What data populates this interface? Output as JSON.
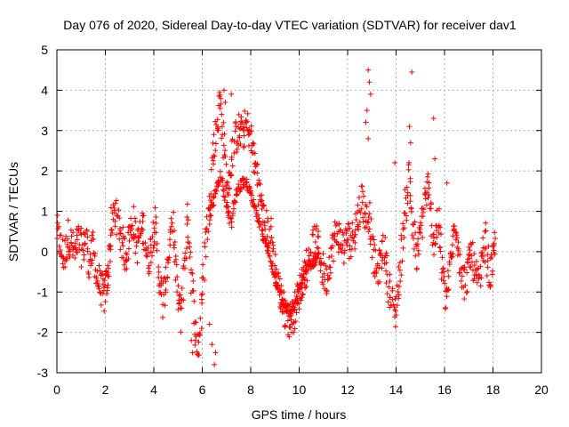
{
  "chart_data": {
    "type": "scatter",
    "title": "Day 076 of 2020, Sidereal Day-to-day VTEC variation (SDTVAR) for receiver dav1",
    "xlabel": "GPS time / hours",
    "ylabel": "SDTVAR / TECUs",
    "xlim": [
      0,
      20
    ],
    "ylim": [
      -3,
      5
    ],
    "xticks": [
      0,
      2,
      4,
      6,
      8,
      10,
      12,
      14,
      16,
      18,
      20
    ],
    "yticks": [
      -3,
      -2,
      -1,
      0,
      1,
      2,
      3,
      4,
      5
    ],
    "grid": true,
    "marker": "+",
    "series": [
      {
        "name": "SDTVAR (dav1)",
        "color": "#ff0000",
        "x": [
          0.0,
          0.15,
          0.3,
          0.45,
          0.6,
          0.75,
          0.9,
          1.05,
          1.2,
          1.35,
          1.5,
          1.65,
          1.8,
          1.95,
          2.05,
          2.15,
          2.25,
          2.4,
          2.55,
          2.7,
          2.85,
          3.0,
          3.15,
          3.3,
          3.45,
          3.6,
          3.75,
          3.9,
          4.05,
          4.2,
          4.35,
          4.5,
          4.65,
          4.8,
          4.95,
          5.1,
          5.25,
          5.4,
          5.55,
          5.7,
          5.85,
          6.0,
          6.15,
          6.3,
          6.45,
          6.6,
          6.75,
          6.9,
          7.05,
          7.2,
          7.35,
          7.5,
          7.65,
          7.8,
          7.95,
          8.1,
          8.25,
          8.4,
          8.55,
          8.7,
          8.85,
          9.0,
          9.15,
          9.3,
          9.45,
          9.6,
          9.75,
          9.9,
          10.05,
          10.2,
          10.35,
          10.5,
          10.65,
          10.8,
          10.95,
          11.1,
          11.25,
          11.4,
          11.55,
          11.7,
          11.85,
          12.0,
          12.15,
          12.3,
          12.45,
          12.6,
          12.75,
          12.9,
          13.05,
          13.2,
          13.35,
          13.5,
          13.65,
          13.8,
          13.95,
          14.1,
          14.25,
          14.4,
          14.55,
          14.7,
          14.85,
          15.0,
          15.15,
          15.3,
          15.45,
          15.6,
          15.75,
          15.9,
          16.05,
          16.2,
          16.35,
          16.5,
          16.65,
          16.8,
          16.95,
          17.1,
          17.25,
          17.4,
          17.55,
          17.7,
          17.85,
          18.0,
          18.1
        ],
        "y": [
          0.5,
          0.1,
          -0.2,
          0.4,
          0.2,
          -0.1,
          0.3,
          0.0,
          0.4,
          -0.3,
          0.1,
          -0.6,
          -0.9,
          -1.1,
          -0.8,
          -0.3,
          0.6,
          1.0,
          0.7,
          0.2,
          -0.1,
          0.4,
          0.8,
          0.1,
          0.5,
          0.6,
          -0.3,
          0.2,
          0.8,
          -0.5,
          -1.3,
          -0.7,
          0.2,
          0.6,
          -0.9,
          -1.6,
          -0.4,
          0.9,
          -0.6,
          -1.9,
          -2.4,
          -1.2,
          0.4,
          1.1,
          2.4,
          3.1,
          3.8,
          2.5,
          1.4,
          2.2,
          2.8,
          3.0,
          2.9,
          3.1,
          3.0,
          2.4,
          2.0,
          1.3,
          0.8,
          0.5,
          0.4,
          -0.4,
          -0.9,
          -1.3,
          -1.5,
          -1.7,
          -1.6,
          -1.2,
          -0.9,
          -0.6,
          -0.3,
          0.0,
          0.3,
          0.1,
          -0.4,
          -0.7,
          -0.2,
          0.2,
          0.5,
          0.3,
          0.1,
          0.4,
          0.2,
          0.6,
          0.9,
          1.4,
          0.8,
          1.0,
          -0.1,
          -0.5,
          -0.3,
          0.2,
          -0.6,
          -1.2,
          -1.5,
          -0.9,
          0.2,
          1.1,
          2.0,
          0.6,
          -0.2,
          0.4,
          1.2,
          1.6,
          0.8,
          0.2,
          0.9,
          -0.4,
          -1.2,
          -0.6,
          0.3,
          0.7,
          -0.3,
          -0.8,
          -0.5,
          0.0,
          -0.5,
          -0.9,
          -0.2,
          0.3,
          -0.6,
          -0.3,
          0.2
        ],
        "x2": [
          6.3,
          6.45,
          6.6,
          6.75,
          6.9,
          7.05,
          7.2,
          7.35,
          7.5,
          7.65,
          7.8,
          7.95,
          8.1,
          8.25,
          8.4,
          8.55,
          8.7,
          8.85,
          9.0,
          9.15,
          9.3,
          9.45,
          9.6,
          9.75,
          9.9,
          10.05,
          10.2,
          10.35,
          10.5,
          10.65,
          10.8
        ],
        "y2": [
          0.9,
          1.2,
          1.6,
          1.9,
          1.5,
          1.0,
          0.7,
          1.3,
          1.6,
          1.7,
          1.7,
          1.5,
          1.2,
          0.9,
          0.6,
          0.3,
          0.0,
          -0.3,
          -0.6,
          -0.9,
          -1.2,
          -1.4,
          -1.5,
          -1.4,
          -1.2,
          -0.9,
          -0.6,
          -0.4,
          -0.3,
          -0.2,
          -0.1
        ],
        "outliers": [
          [
            12.85,
            4.5
          ],
          [
            12.9,
            4.2
          ],
          [
            12.95,
            3.9
          ],
          [
            12.8,
            3.5
          ],
          [
            12.75,
            3.2
          ],
          [
            12.85,
            2.8
          ],
          [
            14.65,
            4.45
          ],
          [
            15.55,
            3.3
          ],
          [
            15.6,
            2.3
          ],
          [
            14.55,
            3.1
          ],
          [
            14.6,
            2.7
          ],
          [
            13.95,
            2.2
          ],
          [
            16.1,
            1.7
          ],
          [
            6.9,
            4.0
          ],
          [
            6.95,
            3.7
          ],
          [
            6.8,
            3.4
          ],
          [
            7.2,
            3.9
          ],
          [
            6.55,
            -2.5
          ],
          [
            6.5,
            -2.8
          ],
          [
            6.4,
            -2.3
          ],
          [
            5.6,
            -2.5
          ],
          [
            5.55,
            -2.2
          ],
          [
            6.3,
            -1.8
          ],
          [
            9.7,
            -1.8
          ]
        ]
      }
    ]
  }
}
